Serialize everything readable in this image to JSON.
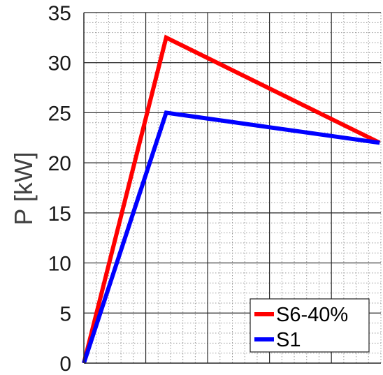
{
  "chart_data": {
    "type": "line",
    "title": "",
    "xlabel": "",
    "ylabel": "P [kW]",
    "ylim": [
      0,
      35
    ],
    "xlim": [
      0,
      4.8
    ],
    "y_ticks": [
      0,
      5,
      10,
      15,
      20,
      25,
      30,
      35
    ],
    "x_tick_values": [
      0,
      1,
      2,
      3,
      4
    ],
    "x_tick_labels_shown": false,
    "grid": true,
    "minor_grid": true,
    "legend_position": "bottom-right",
    "series": [
      {
        "name": "S6-40%",
        "color": "#ff0000",
        "x": [
          0,
          1.33,
          4.78
        ],
        "y": [
          0,
          32.5,
          22
        ]
      },
      {
        "name": "S1",
        "color": "#0000ff",
        "x": [
          0,
          1.33,
          4.78
        ],
        "y": [
          0,
          25,
          22
        ]
      }
    ]
  }
}
